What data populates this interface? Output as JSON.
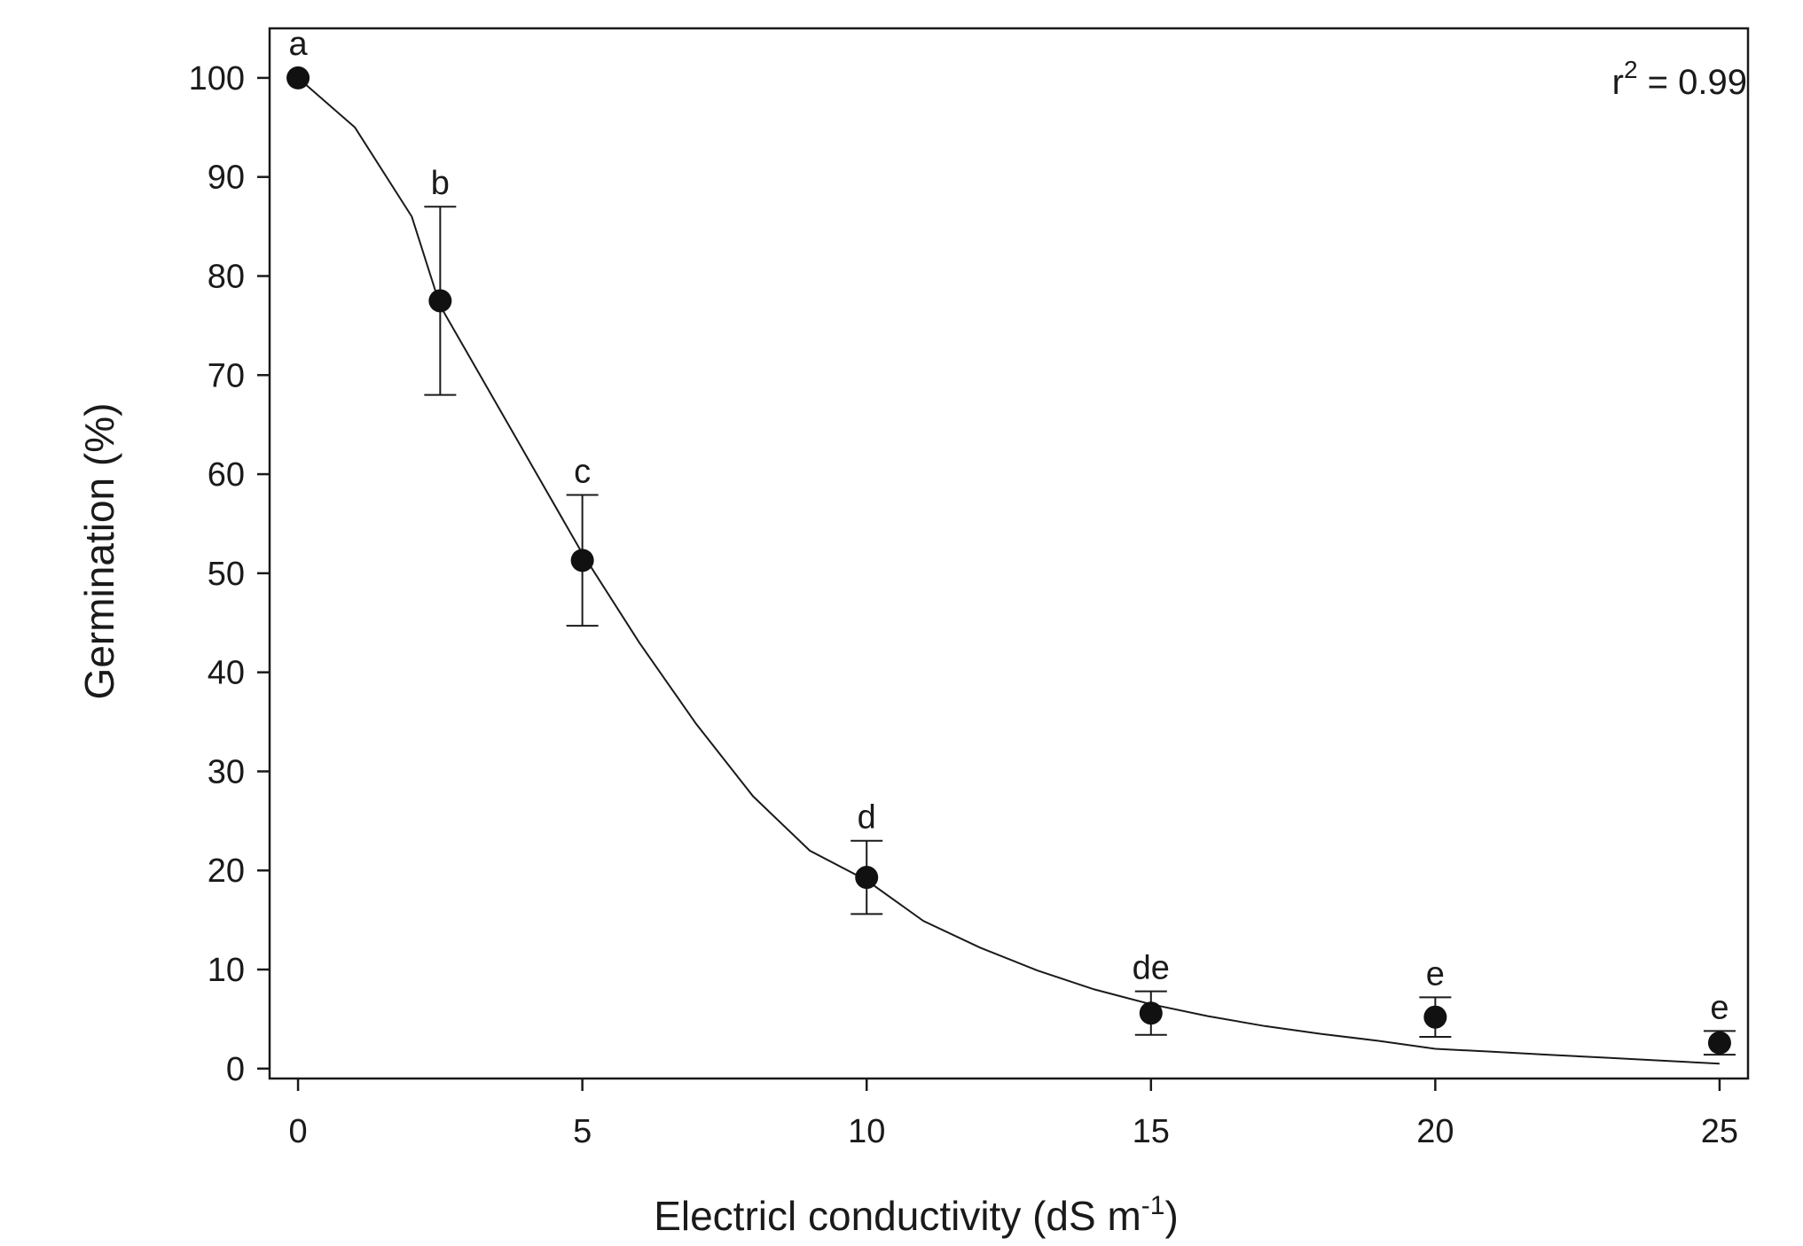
{
  "chart_data": {
    "type": "scatter",
    "title": "",
    "xlabel": "Electricl conductivity (dS m",
    "xlabel_sup": "-1",
    "xlabel_suffix": ")",
    "ylabel": "Germination (%)",
    "xlim": [
      -0.5,
      25.5
    ],
    "ylim": [
      -1,
      105
    ],
    "x_ticks": [
      0,
      5,
      10,
      15,
      20,
      25
    ],
    "y_ticks": [
      0,
      10,
      20,
      30,
      40,
      50,
      60,
      70,
      80,
      90,
      100
    ],
    "grid": false,
    "annotation": {
      "base": "r",
      "sup": "2",
      "rest": " = 0.99"
    },
    "series": [
      {
        "points": [
          {
            "x": 0,
            "y": 100,
            "err": 0,
            "label": "a"
          },
          {
            "x": 2.5,
            "y": 77.5,
            "err": 9.5,
            "label": "b"
          },
          {
            "x": 5,
            "y": 51.3,
            "err": 6.6,
            "label": "c"
          },
          {
            "x": 10,
            "y": 19.3,
            "err": 3.7,
            "label": "d"
          },
          {
            "x": 15,
            "y": 5.6,
            "err": 2.2,
            "label": "de"
          },
          {
            "x": 20,
            "y": 5.2,
            "err": 2.0,
            "label": "e"
          },
          {
            "x": 25,
            "y": 2.6,
            "err": 1.2,
            "label": "e"
          }
        ]
      }
    ],
    "fit_curve": {
      "x": [
        0,
        1,
        2,
        2.5,
        3,
        4,
        5,
        6,
        7,
        8,
        9,
        10,
        11,
        12,
        13,
        14,
        15,
        16,
        17,
        18,
        19,
        20,
        21,
        22,
        23,
        24,
        25
      ],
      "y": [
        100,
        95.0,
        86.0,
        77.0,
        72.0,
        62.0,
        52.0,
        43.0,
        34.8,
        27.5,
        22.0,
        19.0,
        14.9,
        12.2,
        9.9,
        8.0,
        6.5,
        5.3,
        4.3,
        3.5,
        2.8,
        2.0,
        1.7,
        1.4,
        1.1,
        0.8,
        0.5
      ]
    }
  }
}
